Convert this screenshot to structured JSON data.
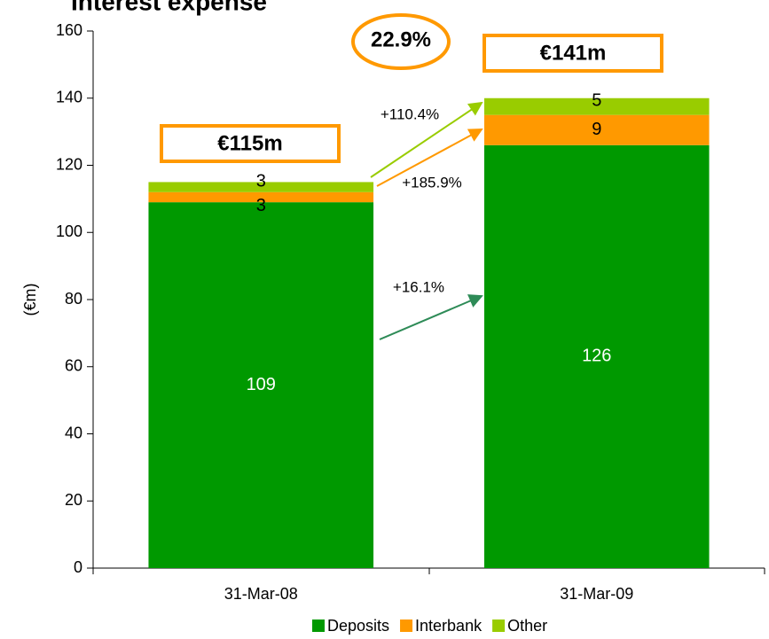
{
  "chart_data": {
    "type": "stacked_bar",
    "title": "Interest expense",
    "y_label": "(€m)",
    "categories": [
      "31-Mar-08",
      "31-Mar-09"
    ],
    "series": [
      {
        "name": "Deposits",
        "color": "#009900",
        "values": [
          109,
          126
        ]
      },
      {
        "name": "Interbank",
        "color": "#ff9900",
        "values": [
          3,
          9
        ]
      },
      {
        "name": "Other",
        "color": "#99cc00",
        "values": [
          3,
          5
        ]
      }
    ],
    "ylim": [
      0,
      160
    ],
    "yticks": [
      0,
      20,
      40,
      60,
      80,
      100,
      120,
      140,
      160
    ],
    "annotations": [
      "€115m",
      "€141m",
      "22.9%",
      "+110.4%",
      "+185.9%",
      "+16.1%"
    ]
  }
}
